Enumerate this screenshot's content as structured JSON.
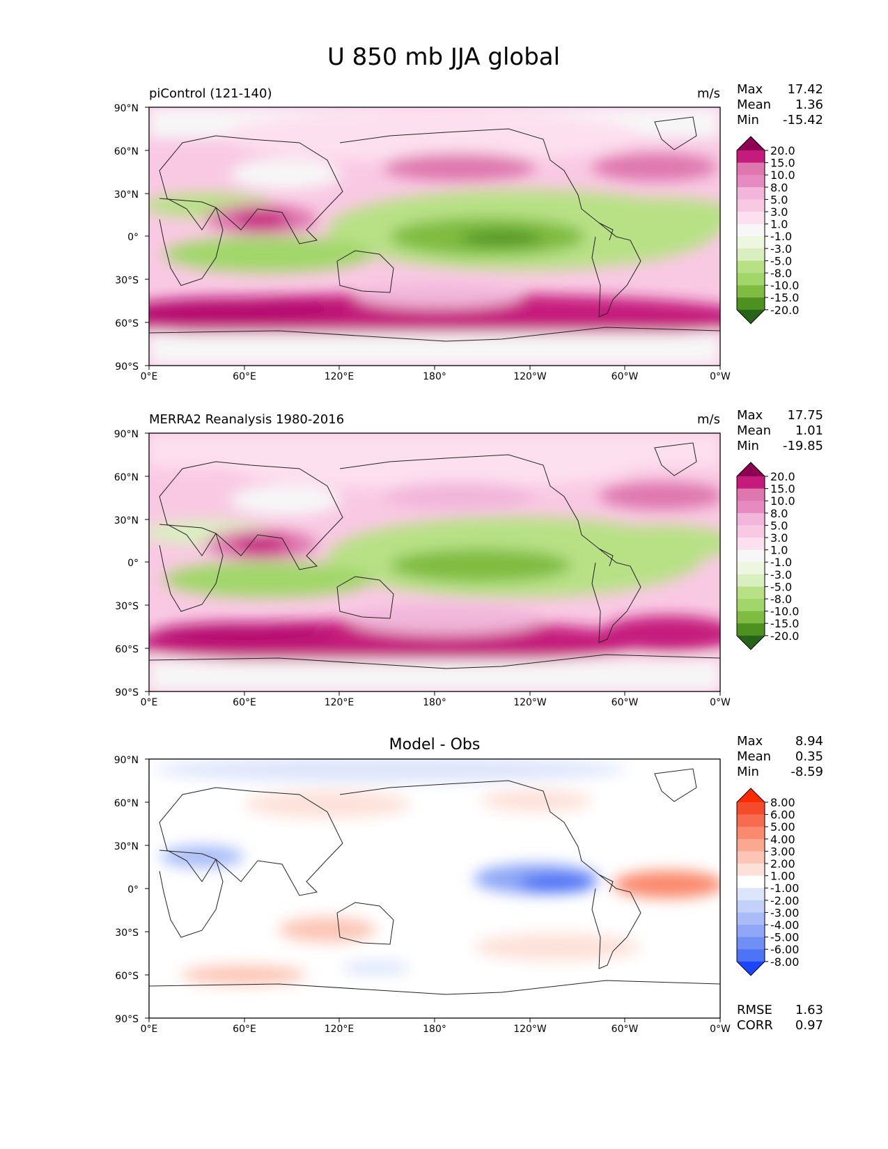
{
  "figure": {
    "title": "U 850 mb JJA global"
  },
  "colors": {
    "div_pos": [
      "#f7f7f7",
      "#fde0ef",
      "#f9c9e3",
      "#f1b6da",
      "#e78ac2",
      "#de77ae",
      "#c51b7d",
      "#b5106f",
      "#8e0152"
    ],
    "div_neg": [
      "#f7f7f7",
      "#eef6e0",
      "#d9efbf",
      "#b8e186",
      "#a1d76a",
      "#7fbc41",
      "#5ea830",
      "#4d9221",
      "#276419"
    ],
    "diff_pos": [
      "#ffffff",
      "#fde1d9",
      "#fcc5b5",
      "#fba890",
      "#f98a6e",
      "#f76b4e",
      "#f54a2c",
      "#ff2b00"
    ],
    "diff_neg": [
      "#ffffff",
      "#dde5fb",
      "#c3d1fa",
      "#a9bcf8",
      "#8fa7f6",
      "#6f8ff5",
      "#4d73f6",
      "#1b45ff"
    ]
  },
  "chart_data": [
    {
      "type": "heatmap",
      "panel": "test",
      "title": "piControl (121-140)",
      "units": "m/s",
      "stats": {
        "Max": "17.42",
        "Mean": "1.36",
        "Min": "-15.42"
      },
      "stat_labels": [
        "Max",
        "Mean",
        "Min"
      ],
      "xticks": [
        "0°E",
        "60°E",
        "120°E",
        "180°",
        "120°W",
        "60°W",
        "0°W"
      ],
      "yticks": [
        "90°N",
        "60°N",
        "30°N",
        "0°",
        "30°S",
        "60°S",
        "90°S"
      ],
      "xlim": [
        0,
        360
      ],
      "ylim": [
        -90,
        90
      ],
      "colorbar_levels": [
        "20.0",
        "15.0",
        "10.0",
        "8.0",
        "5.0",
        "3.0",
        "1.0",
        "-1.0",
        "-3.0",
        "-5.0",
        "-8.0",
        "-10.0",
        "-15.0",
        "-20.0"
      ],
      "colorbar_colors": [
        "#8e0152",
        "#c51b7d",
        "#de77ae",
        "#e78ac2",
        "#f1b6da",
        "#f9c9e3",
        "#fde0ef",
        "#f7f7f7",
        "#eef6e0",
        "#d9efbf",
        "#b8e186",
        "#a1d76a",
        "#7fbc41",
        "#4d9221",
        "#276419"
      ]
    },
    {
      "type": "heatmap",
      "panel": "reference",
      "title": "MERRA2 Reanalysis 1980-2016",
      "units": "m/s",
      "stats": {
        "Max": "17.75",
        "Mean": "1.01",
        "Min": "-19.85"
      },
      "stat_labels": [
        "Max",
        "Mean",
        "Min"
      ],
      "xticks": [
        "0°E",
        "60°E",
        "120°E",
        "180°",
        "120°W",
        "60°W",
        "0°W"
      ],
      "yticks": [
        "90°N",
        "60°N",
        "30°N",
        "0°",
        "30°S",
        "60°S",
        "90°S"
      ],
      "xlim": [
        0,
        360
      ],
      "ylim": [
        -90,
        90
      ],
      "colorbar_levels": [
        "20.0",
        "15.0",
        "10.0",
        "8.0",
        "5.0",
        "3.0",
        "1.0",
        "-1.0",
        "-3.0",
        "-5.0",
        "-8.0",
        "-10.0",
        "-15.0",
        "-20.0"
      ],
      "colorbar_colors": [
        "#8e0152",
        "#c51b7d",
        "#de77ae",
        "#e78ac2",
        "#f1b6da",
        "#f9c9e3",
        "#fde0ef",
        "#f7f7f7",
        "#eef6e0",
        "#d9efbf",
        "#b8e186",
        "#a1d76a",
        "#7fbc41",
        "#4d9221",
        "#276419"
      ]
    },
    {
      "type": "heatmap",
      "panel": "difference",
      "title": "Model - Obs",
      "units": "",
      "stats": {
        "Max": "8.94",
        "Mean": "0.35",
        "Min": "-8.59"
      },
      "stat_labels": [
        "Max",
        "Mean",
        "Min"
      ],
      "extra_stats": {
        "RMSE": "1.63",
        "CORR": "0.97"
      },
      "extra_labels": [
        "RMSE",
        "CORR"
      ],
      "xticks": [
        "0°E",
        "60°E",
        "120°E",
        "180°",
        "120°W",
        "60°W",
        "0°W"
      ],
      "yticks": [
        "90°N",
        "60°N",
        "30°N",
        "0°",
        "30°S",
        "60°S",
        "90°S"
      ],
      "xlim": [
        0,
        360
      ],
      "ylim": [
        -90,
        90
      ],
      "colorbar_levels": [
        "8.00",
        "6.00",
        "5.00",
        "4.00",
        "3.00",
        "2.00",
        "1.00",
        "-1.00",
        "-2.00",
        "-3.00",
        "-4.00",
        "-5.00",
        "-6.00",
        "-8.00"
      ],
      "colorbar_colors": [
        "#ff2b00",
        "#f54a2c",
        "#f76b4e",
        "#f98a6e",
        "#fba890",
        "#fcc5b5",
        "#fde1d9",
        "#ffffff",
        "#dde5fb",
        "#c3d1fa",
        "#a9bcf8",
        "#8fa7f6",
        "#6f8ff5",
        "#4d73f6",
        "#1b45ff"
      ]
    }
  ]
}
